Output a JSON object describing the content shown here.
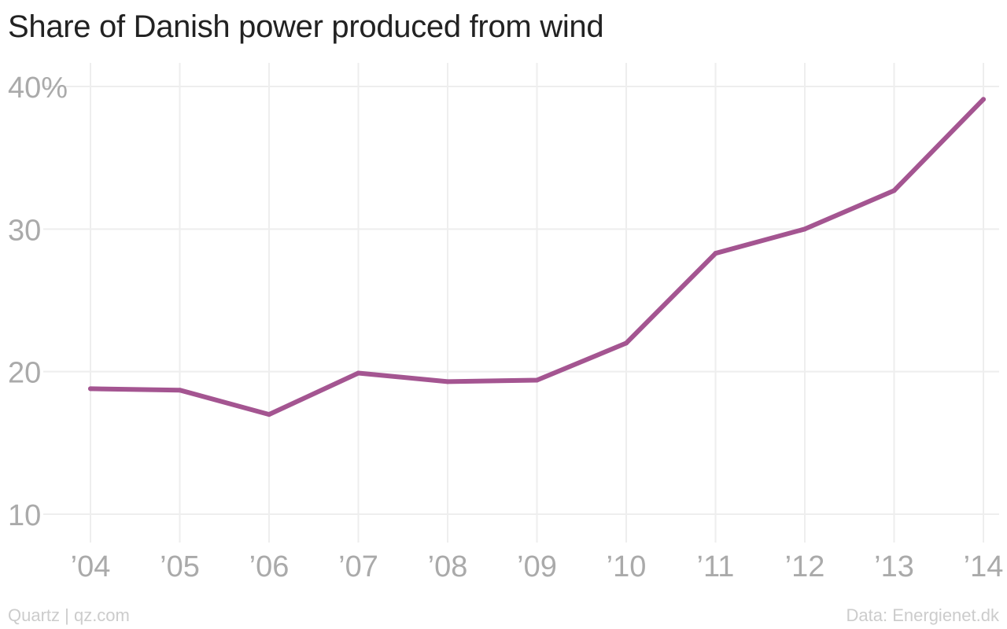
{
  "chart_data": {
    "type": "line",
    "title": "Share of Danish power produced from wind",
    "xlabel": "",
    "ylabel": "",
    "categories": [
      "’04",
      "’05",
      "’06",
      "’07",
      "’08",
      "’09",
      "’10",
      "’11",
      "’12",
      "’13",
      "’14"
    ],
    "series": [
      {
        "values": [
          18.8,
          18.7,
          17.0,
          19.9,
          19.3,
          19.4,
          22.0,
          28.3,
          30.0,
          32.7,
          39.1
        ]
      }
    ],
    "y_ticks": [
      {
        "value": 10,
        "label": "10"
      },
      {
        "value": 20,
        "label": "20"
      },
      {
        "value": 30,
        "label": "30"
      },
      {
        "value": 40,
        "label": "40%"
      }
    ],
    "ylim": [
      10,
      40
    ],
    "grid": true,
    "line_color": "#a45591",
    "grid_color": "#eeeeee",
    "legend": "none"
  },
  "footer": {
    "left": "Quartz | qz.com",
    "right": "Data: Energienet.dk"
  }
}
